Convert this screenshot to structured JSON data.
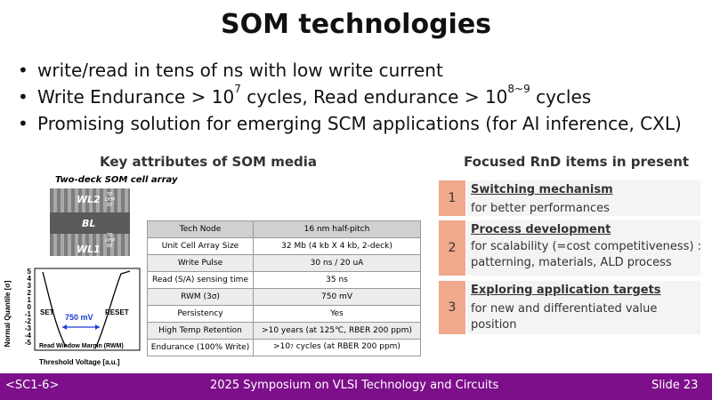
{
  "slide": {
    "title": "SOM technologies",
    "bullets": [
      {
        "pre": "write/read in tens of ns with low write current",
        "sup": "",
        "post": "",
        "sup2": "",
        "post2": ""
      },
      {
        "pre": "Write Endurance > 10",
        "sup": "7",
        "post": " cycles, Read endurance > 10",
        "sup2": "8~9",
        "post2": " cycles"
      },
      {
        "pre": "Promising solution for emerging SCM applications (for AI inference, CXL)",
        "sup": "",
        "post": "",
        "sup2": "",
        "post2": ""
      }
    ]
  },
  "left": {
    "heading": "Key attributes of SOM media",
    "array_caption": "Two-deck SOM cell array",
    "image_labels": {
      "wl2": "WL2",
      "bl": "BL",
      "wl1": "WL1",
      "stack_te": "TE",
      "stack_dfm": "DFM",
      "stack_be": "BE"
    },
    "plot": {
      "ylabel": "Normal Quantile [σ]",
      "xlabel": "Threshold Voltage [a.u.]",
      "yticks": [
        "5",
        "4",
        "3",
        "2",
        "1",
        "0",
        "-1",
        "-2",
        "-3",
        "-4",
        "-5"
      ],
      "set_label": "SET",
      "reset_label": "RESET",
      "window_value": "750 mV",
      "window_label": "Read Window Margin (RWM)"
    }
  },
  "table": {
    "header": [
      "Tech Node",
      "16 nm half-pitch"
    ],
    "rows": [
      {
        "attr": "Unit Cell Array Size",
        "value": "32 Mb (4 kb X 4 kb, 2-deck)",
        "sup": "",
        "post": ""
      },
      {
        "attr": "Write Pulse",
        "value": "30 ns / 20 uA",
        "sup": "",
        "post": ""
      },
      {
        "attr": "Read (S/A) sensing time",
        "value": "35 ns",
        "sup": "",
        "post": ""
      },
      {
        "attr": "RWM (3σ)",
        "value": "750 mV",
        "sup": "",
        "post": ""
      },
      {
        "attr": "Persistency",
        "value": "Yes",
        "sup": "",
        "post": ""
      },
      {
        "attr": "High Temp Retention",
        "value": ">10 years (at 125℃, RBER 200 ppm)",
        "sup": "",
        "post": ""
      },
      {
        "attr": "Endurance (100% Write)",
        "value": ">10",
        "sup": "7",
        "post": " cycles (at RBER 200 ppm)"
      }
    ]
  },
  "right": {
    "heading": "Focused RnD items in present",
    "items": [
      {
        "num": "1",
        "title": "Switching mechanism",
        "desc": "for better performances"
      },
      {
        "num": "2",
        "title": "Process development",
        "desc": "for scalability (=cost competitiveness) : patterning, materials, ALD process"
      },
      {
        "num": "3",
        "title": "Exploring application targets",
        "desc": "for new and differentiated value position"
      }
    ]
  },
  "footer": {
    "left": "<SC1-6>",
    "center": "2025 Symposium on VLSI Technology and Circuits",
    "right": "Slide 23"
  },
  "colors": {
    "footer_bg": "#7d0f8a",
    "number_box": "#f0a98c",
    "window_arrow": "#1a3ccf"
  }
}
